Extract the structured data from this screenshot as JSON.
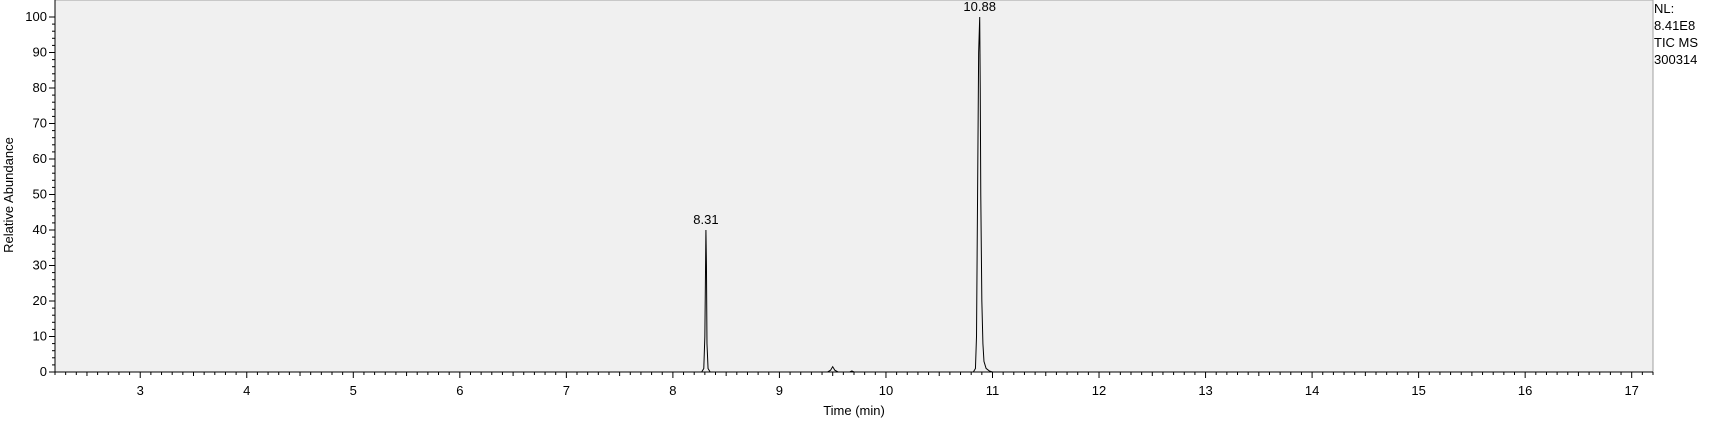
{
  "info": {
    "line1": "NL:",
    "line2": "8.41E8",
    "line3": "TIC  MS",
    "line4": "300314"
  },
  "chart_data": {
    "type": "line",
    "xlabel": "Time (min)",
    "ylabel": "Relative Abundance",
    "xlim": [
      2.2,
      17.2
    ],
    "ylim": [
      0,
      100
    ],
    "xticks": [
      3,
      4,
      5,
      6,
      7,
      8,
      9,
      10,
      11,
      12,
      13,
      14,
      15,
      16,
      17
    ],
    "yticks": [
      0,
      10,
      20,
      30,
      40,
      50,
      60,
      70,
      80,
      90,
      100
    ],
    "grid": false,
    "peak_labels": [
      {
        "x": 8.31,
        "y": 40,
        "label": "8.31"
      },
      {
        "x": 10.88,
        "y": 100,
        "label": "10.88"
      }
    ],
    "series": [
      {
        "x": [
          2.2,
          8.27,
          8.29,
          8.3,
          8.31,
          8.315,
          8.32,
          8.33,
          8.35,
          9.45,
          9.48,
          9.5,
          9.52,
          9.55,
          9.66,
          9.68,
          9.7,
          10.82,
          10.84,
          10.85,
          10.86,
          10.87,
          10.88,
          10.885,
          10.89,
          10.9,
          10.91,
          10.92,
          10.94,
          10.97,
          11.0,
          17.2
        ],
        "y": [
          0,
          0,
          1,
          10,
          40,
          30,
          8,
          1,
          0,
          0,
          0.5,
          1.5,
          0.5,
          0,
          0,
          0.3,
          0,
          0,
          1,
          10,
          50,
          90,
          100,
          80,
          50,
          20,
          8,
          3,
          1,
          0.3,
          0,
          0
        ]
      }
    ]
  }
}
